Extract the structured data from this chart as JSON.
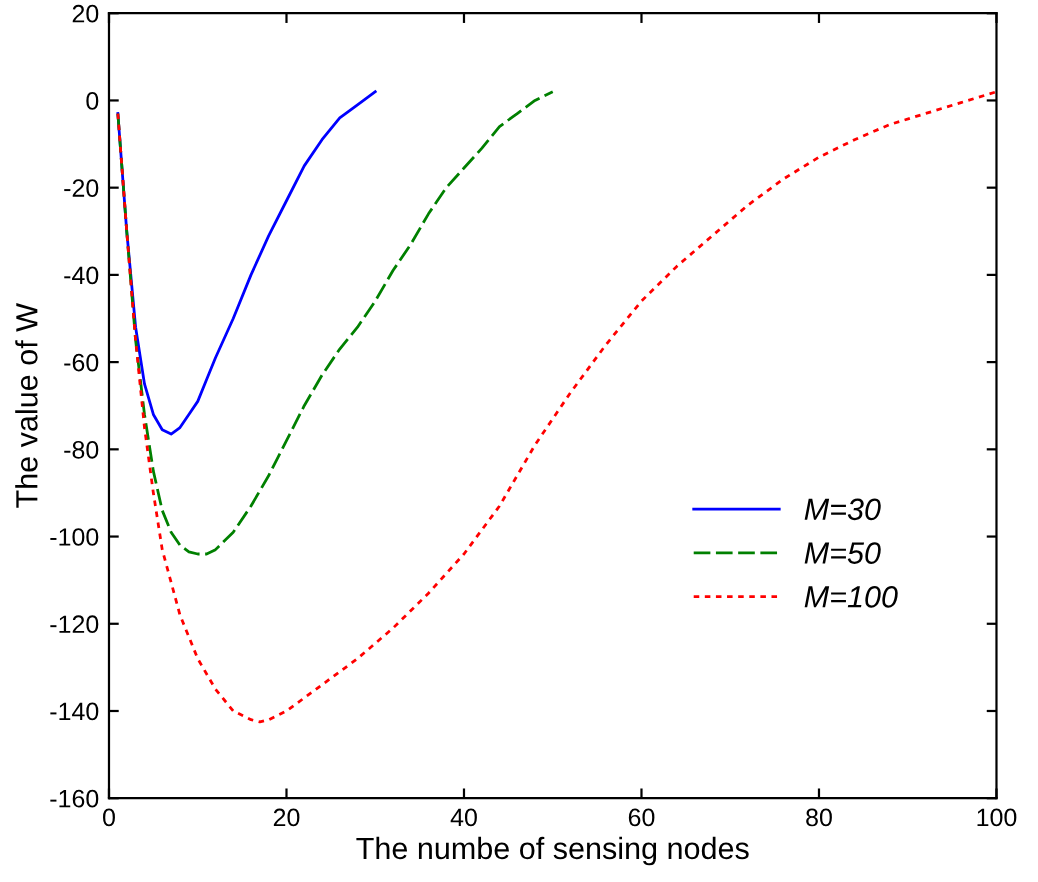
{
  "chart_data": {
    "type": "line",
    "xlabel": "The numbe of sensing nodes",
    "ylabel": "The value of W",
    "xlim": [
      0,
      100
    ],
    "xticks": [
      0,
      20,
      40,
      60,
      80,
      100
    ],
    "ylim": [
      -160,
      20
    ],
    "yticks": [
      -160,
      -140,
      -120,
      -100,
      -80,
      -60,
      -40,
      -20,
      0,
      20
    ],
    "grid": false,
    "legend": "bottom right",
    "marker": "none",
    "series": [
      {
        "name": "M=30",
        "color": "#0000ff",
        "line_style": "solid",
        "x": [
          1,
          2,
          3,
          4,
          5,
          6,
          7,
          8,
          9,
          10,
          11,
          12,
          14,
          16,
          18,
          20,
          22,
          24,
          26,
          28,
          30
        ],
        "values": [
          -3,
          -30,
          -52,
          -65,
          -72,
          -75.5,
          -76.5,
          -75,
          -72,
          -69,
          -64,
          -59,
          -50,
          -40,
          -31,
          -23,
          -15,
          -9,
          -4,
          -1,
          2
        ]
      },
      {
        "name": "M=50",
        "color": "#008000",
        "line_style": "dashed",
        "x": [
          1,
          2,
          3,
          4,
          5,
          6,
          7,
          8,
          9,
          10,
          11,
          12,
          14,
          16,
          18,
          20,
          22,
          24,
          26,
          28,
          30,
          32,
          34,
          36,
          38,
          40,
          42,
          44,
          46,
          48,
          50
        ],
        "values": [
          -3,
          -30,
          -55,
          -72,
          -85,
          -94,
          -99,
          -102,
          -103.5,
          -104,
          -104,
          -103,
          -99,
          -93,
          -86,
          -78,
          -70,
          -63,
          -57,
          -52,
          -46,
          -39,
          -33,
          -26,
          -20,
          -15.5,
          -11,
          -6,
          -3,
          0,
          2
        ]
      },
      {
        "name": "M=100",
        "color": "#ff0000",
        "line_style": "dotted",
        "x": [
          1,
          2,
          3,
          4,
          5,
          6,
          8,
          10,
          12,
          14,
          16,
          17,
          18,
          20,
          24,
          28,
          32,
          36,
          40,
          44,
          48,
          52,
          56,
          60,
          64,
          68,
          72,
          76,
          80,
          84,
          88,
          92,
          96,
          100
        ],
        "values": [
          -3,
          -30,
          -55,
          -75,
          -90,
          -103,
          -118,
          -128,
          -135,
          -140,
          -142,
          -142.5,
          -142,
          -140,
          -134,
          -128,
          -121,
          -113,
          -104,
          -93,
          -79,
          -67,
          -56,
          -46,
          -38,
          -31,
          -24,
          -18,
          -13,
          -9,
          -5.5,
          -3,
          -0.5,
          2
        ]
      }
    ]
  }
}
